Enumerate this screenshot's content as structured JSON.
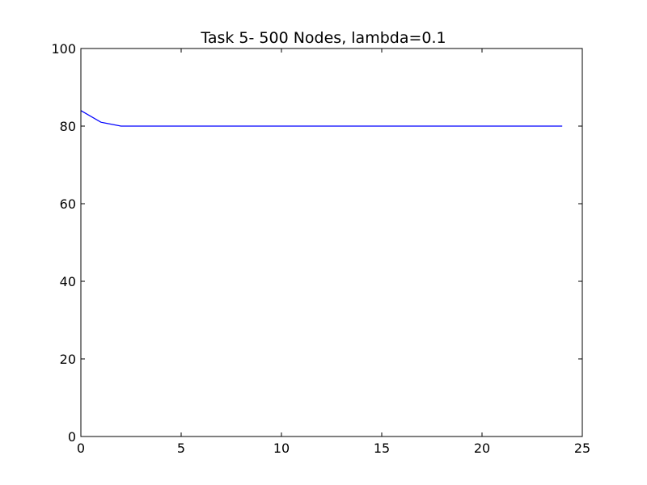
{
  "chart_data": {
    "type": "line",
    "title": "Task 5- 500 Nodes, lambda=0.1",
    "xlabel": "",
    "ylabel": "",
    "xlim": [
      0,
      25
    ],
    "ylim": [
      0,
      100
    ],
    "xticks": [
      0,
      5,
      10,
      15,
      20,
      25
    ],
    "yticks": [
      0,
      20,
      40,
      60,
      80,
      100
    ],
    "grid": false,
    "series": [
      {
        "color": "#0000ff",
        "x": [
          0,
          1,
          2,
          3,
          4,
          5,
          6,
          7,
          8,
          9,
          10,
          11,
          12,
          13,
          14,
          15,
          16,
          17,
          18,
          19,
          20,
          21,
          22,
          23,
          24
        ],
        "y": [
          84,
          81,
          80,
          80,
          80,
          80,
          80,
          80,
          80,
          80,
          80,
          80,
          80,
          80,
          80,
          80,
          80,
          80,
          80,
          80,
          80,
          80,
          80,
          80,
          80
        ]
      }
    ]
  }
}
